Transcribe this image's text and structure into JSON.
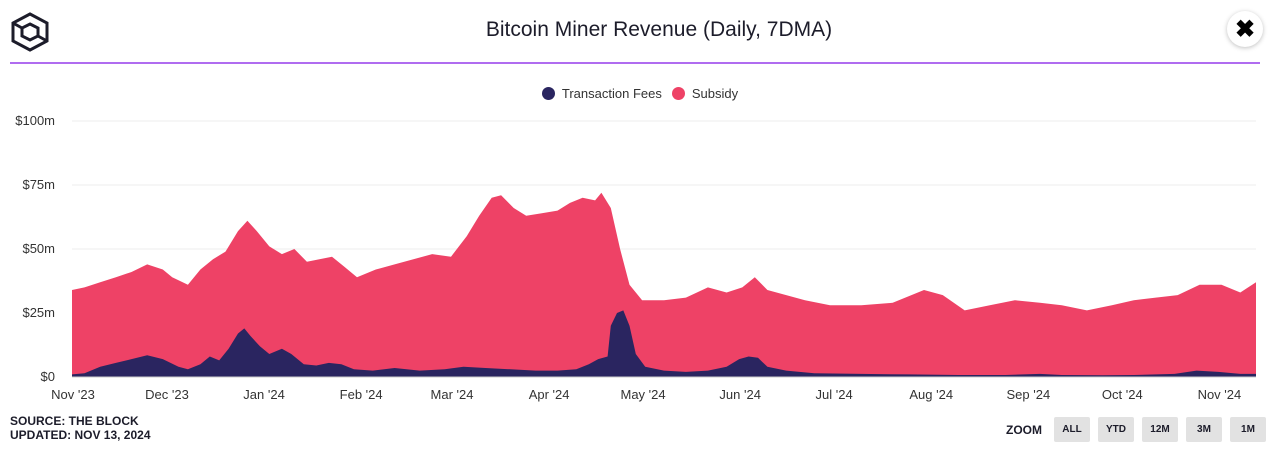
{
  "header": {
    "title": "Bitcoin Miner Revenue (Daily, 7DMA)",
    "close_label": "✖"
  },
  "footer": {
    "source": "SOURCE: THE BLOCK",
    "updated": "UPDATED: NOV 13, 2024"
  },
  "zoom": {
    "label": "ZOOM",
    "buttons": [
      "ALL",
      "YTD",
      "12M",
      "3M",
      "1M"
    ]
  },
  "colors": {
    "fees": "#2a2560",
    "subsidy": "#ee4266",
    "accent_line": "#b06cf0",
    "grid": "#ececec"
  },
  "chart_data": {
    "type": "area",
    "stacked": true,
    "title": "Bitcoin Miner Revenue (Daily, 7DMA)",
    "ylim": [
      0,
      100
    ],
    "y_ticks": [
      "$0",
      "$25m",
      "$50m",
      "$75m",
      "$100m"
    ],
    "x_ticks": [
      "Nov '23",
      "Dec '23",
      "Jan '24",
      "Feb '24",
      "Mar '24",
      "Apr '24",
      "May '24",
      "Jun '24",
      "Jul '24",
      "Aug '24",
      "Sep '24",
      "Oct '24",
      "Nov '24"
    ],
    "x_start": "2023-11-01",
    "x_end": "2024-11-13",
    "grid": true,
    "legend_position": "top-center",
    "series": [
      {
        "name": "Transaction Fees",
        "color": "#2a2560",
        "points": [
          [
            "2023-11-01",
            1
          ],
          [
            "2023-11-05",
            1.5
          ],
          [
            "2023-11-10",
            4
          ],
          [
            "2023-11-15",
            5.5
          ],
          [
            "2023-11-20",
            7
          ],
          [
            "2023-11-25",
            8.5
          ],
          [
            "2023-11-30",
            7
          ],
          [
            "2023-12-05",
            4
          ],
          [
            "2023-12-08",
            3
          ],
          [
            "2023-12-12",
            5
          ],
          [
            "2023-12-15",
            8
          ],
          [
            "2023-12-18",
            6.5
          ],
          [
            "2023-12-21",
            11
          ],
          [
            "2023-12-24",
            17
          ],
          [
            "2023-12-26",
            19
          ],
          [
            "2023-12-28",
            16
          ],
          [
            "2023-12-31",
            12
          ],
          [
            "2024-01-03",
            9
          ],
          [
            "2024-01-07",
            11
          ],
          [
            "2024-01-10",
            9
          ],
          [
            "2024-01-14",
            5
          ],
          [
            "2024-01-18",
            4.5
          ],
          [
            "2024-01-22",
            5.5
          ],
          [
            "2024-01-26",
            5
          ],
          [
            "2024-01-30",
            3
          ],
          [
            "2024-02-05",
            2.5
          ],
          [
            "2024-02-12",
            3.5
          ],
          [
            "2024-02-20",
            2.5
          ],
          [
            "2024-02-28",
            3
          ],
          [
            "2024-03-05",
            4
          ],
          [
            "2024-03-12",
            3.5
          ],
          [
            "2024-03-20",
            3
          ],
          [
            "2024-03-28",
            2.5
          ],
          [
            "2024-04-04",
            2.5
          ],
          [
            "2024-04-10",
            3
          ],
          [
            "2024-04-14",
            5
          ],
          [
            "2024-04-17",
            7
          ],
          [
            "2024-04-20",
            8
          ],
          [
            "2024-04-21",
            20
          ],
          [
            "2024-04-23",
            25
          ],
          [
            "2024-04-25",
            26
          ],
          [
            "2024-04-27",
            20
          ],
          [
            "2024-04-29",
            9
          ],
          [
            "2024-05-02",
            4
          ],
          [
            "2024-05-08",
            2.5
          ],
          [
            "2024-05-15",
            2
          ],
          [
            "2024-05-22",
            2.5
          ],
          [
            "2024-05-28",
            4
          ],
          [
            "2024-06-01",
            7
          ],
          [
            "2024-06-04",
            8
          ],
          [
            "2024-06-07",
            7.5
          ],
          [
            "2024-06-10",
            4
          ],
          [
            "2024-06-16",
            2.5
          ],
          [
            "2024-06-25",
            1.5
          ],
          [
            "2024-07-10",
            1.2
          ],
          [
            "2024-07-25",
            1
          ],
          [
            "2024-08-10",
            0.8
          ],
          [
            "2024-08-25",
            0.8
          ],
          [
            "2024-09-05",
            1.2
          ],
          [
            "2024-09-12",
            0.8
          ],
          [
            "2024-09-25",
            0.7
          ],
          [
            "2024-10-05",
            0.8
          ],
          [
            "2024-10-18",
            1.2
          ],
          [
            "2024-10-25",
            2.5
          ],
          [
            "2024-11-01",
            2
          ],
          [
            "2024-11-08",
            1.2
          ],
          [
            "2024-11-13",
            1.2
          ]
        ]
      },
      {
        "name": "Subsidy",
        "color": "#ee4266",
        "total_points": [
          [
            "2023-11-01",
            34
          ],
          [
            "2023-11-05",
            35
          ],
          [
            "2023-11-10",
            37
          ],
          [
            "2023-11-15",
            39
          ],
          [
            "2023-11-20",
            41
          ],
          [
            "2023-11-25",
            44
          ],
          [
            "2023-11-30",
            42
          ],
          [
            "2023-12-03",
            39
          ],
          [
            "2023-12-08",
            36
          ],
          [
            "2023-12-12",
            42
          ],
          [
            "2023-12-16",
            46
          ],
          [
            "2023-12-20",
            49
          ],
          [
            "2023-12-24",
            57
          ],
          [
            "2023-12-27",
            61
          ],
          [
            "2023-12-30",
            57
          ],
          [
            "2024-01-03",
            51
          ],
          [
            "2024-01-07",
            48
          ],
          [
            "2024-01-11",
            50
          ],
          [
            "2024-01-15",
            45
          ],
          [
            "2024-01-19",
            46
          ],
          [
            "2024-01-23",
            47
          ],
          [
            "2024-01-27",
            43
          ],
          [
            "2024-01-31",
            39
          ],
          [
            "2024-02-06",
            42
          ],
          [
            "2024-02-12",
            44
          ],
          [
            "2024-02-18",
            46
          ],
          [
            "2024-02-24",
            48
          ],
          [
            "2024-03-01",
            47
          ],
          [
            "2024-03-06",
            55
          ],
          [
            "2024-03-10",
            63
          ],
          [
            "2024-03-14",
            70
          ],
          [
            "2024-03-17",
            71
          ],
          [
            "2024-03-21",
            66
          ],
          [
            "2024-03-25",
            63
          ],
          [
            "2024-03-30",
            64
          ],
          [
            "2024-04-04",
            65
          ],
          [
            "2024-04-08",
            68
          ],
          [
            "2024-04-12",
            70
          ],
          [
            "2024-04-16",
            69
          ],
          [
            "2024-04-18",
            72
          ],
          [
            "2024-04-21",
            66
          ],
          [
            "2024-04-24",
            50
          ],
          [
            "2024-04-27",
            36
          ],
          [
            "2024-05-01",
            30
          ],
          [
            "2024-05-08",
            30
          ],
          [
            "2024-05-15",
            31
          ],
          [
            "2024-05-22",
            35
          ],
          [
            "2024-05-28",
            33
          ],
          [
            "2024-06-02",
            35
          ],
          [
            "2024-06-06",
            39
          ],
          [
            "2024-06-10",
            34
          ],
          [
            "2024-06-16",
            32
          ],
          [
            "2024-06-22",
            30
          ],
          [
            "2024-06-30",
            28
          ],
          [
            "2024-07-10",
            28
          ],
          [
            "2024-07-20",
            29
          ],
          [
            "2024-07-30",
            34
          ],
          [
            "2024-08-05",
            32
          ],
          [
            "2024-08-12",
            26
          ],
          [
            "2024-08-20",
            28
          ],
          [
            "2024-08-28",
            30
          ],
          [
            "2024-09-05",
            29
          ],
          [
            "2024-09-12",
            28
          ],
          [
            "2024-09-20",
            26
          ],
          [
            "2024-09-28",
            28
          ],
          [
            "2024-10-05",
            30
          ],
          [
            "2024-10-12",
            31
          ],
          [
            "2024-10-19",
            32
          ],
          [
            "2024-10-26",
            36
          ],
          [
            "2024-11-02",
            36
          ],
          [
            "2024-11-08",
            33
          ],
          [
            "2024-11-13",
            37
          ]
        ]
      }
    ]
  }
}
